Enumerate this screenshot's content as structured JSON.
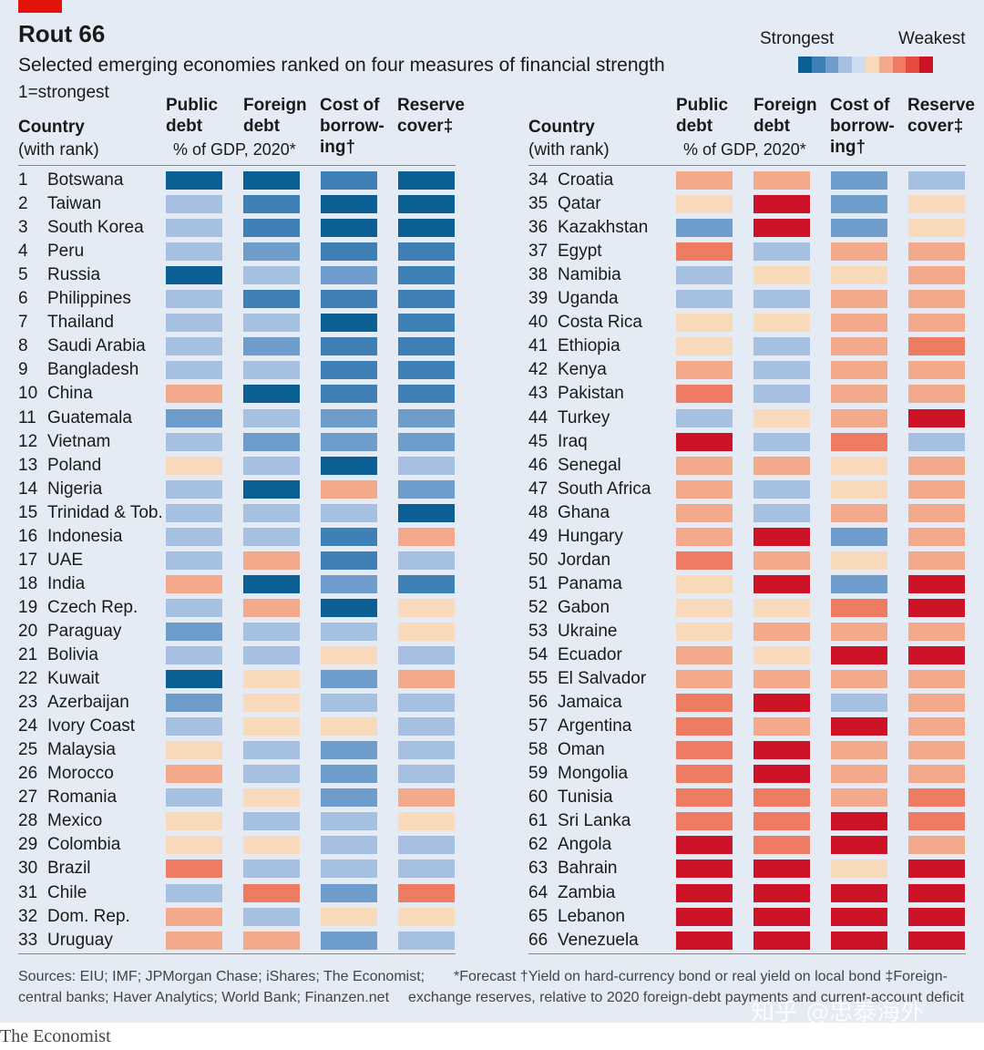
{
  "header": {
    "title": "Rout 66",
    "subtitle": "Selected emerging economies ranked on four measures of financial strength",
    "note": "1=strongest"
  },
  "legend": {
    "strongest_label": "Strongest",
    "weakest_label": "Weakest"
  },
  "column_headers": {
    "country": "Country",
    "country_sub": "(with rank)",
    "public_debt": "Public\ndebt",
    "foreign_debt": "Foreign\ndebt",
    "units": "% of GDP, 2020*",
    "cost_of_borrowing": "Cost of\nborrow-\ning†",
    "reserve_cover": "Reserve\ncover‡"
  },
  "footer": {
    "sources_line1": "Sources: EIU; IMF; JPMorgan Chase; iShares; The Economist;",
    "sources_line2": "central banks; Haver Analytics; World Bank; Finanzen.net",
    "notes_line1": "*Forecast   †Yield on hard-currency bond or real yield on local bond   ‡Foreign-",
    "notes_line2": "exchange reserves, relative to 2020 foreign-debt payments and current-account deficit"
  },
  "watermark": "知乎 @忠泰海外",
  "brand": "The Economist",
  "colors": {
    "scale": [
      "#0b5f93",
      "#3e7fb5",
      "#6e9ccb",
      "#a6c0e1",
      "#cddcee",
      "#f8d9ba",
      "#f4a98d",
      "#ee7c63",
      "#e54b3f",
      "#cc1426"
    ],
    "panel_background": "#e5ebf4",
    "brand_red": "#e3120b"
  },
  "chart_data": {
    "type": "heatmap",
    "title": "Rout 66",
    "subtitle": "Selected emerging economies ranked on four measures of financial strength",
    "note": "1=strongest",
    "scale": "1=strongest (dark blue) to 10=weakest (dark red)",
    "measures": [
      "Public debt",
      "Foreign debt",
      "Cost of borrowing",
      "Reserve cover"
    ],
    "rows": [
      {
        "rank": 1,
        "country": "Botswana",
        "scores": [
          1,
          1,
          2,
          1
        ]
      },
      {
        "rank": 2,
        "country": "Taiwan",
        "scores": [
          4,
          2,
          1,
          1
        ]
      },
      {
        "rank": 3,
        "country": "South Korea",
        "scores": [
          4,
          2,
          1,
          1
        ]
      },
      {
        "rank": 4,
        "country": "Peru",
        "scores": [
          4,
          3,
          2,
          2
        ]
      },
      {
        "rank": 5,
        "country": "Russia",
        "scores": [
          1,
          4,
          3,
          2
        ]
      },
      {
        "rank": 6,
        "country": "Philippines",
        "scores": [
          4,
          2,
          2,
          2
        ]
      },
      {
        "rank": 7,
        "country": "Thailand",
        "scores": [
          4,
          4,
          1,
          2
        ]
      },
      {
        "rank": 8,
        "country": "Saudi Arabia",
        "scores": [
          4,
          3,
          2,
          2
        ]
      },
      {
        "rank": 9,
        "country": "Bangladesh",
        "scores": [
          4,
          4,
          2,
          2
        ]
      },
      {
        "rank": 10,
        "country": "China",
        "scores": [
          7,
          1,
          2,
          2
        ]
      },
      {
        "rank": 11,
        "country": "Guatemala",
        "scores": [
          3,
          4,
          3,
          3
        ]
      },
      {
        "rank": 12,
        "country": "Vietnam",
        "scores": [
          4,
          3,
          3,
          3
        ]
      },
      {
        "rank": 13,
        "country": "Poland",
        "scores": [
          6,
          4,
          1,
          4
        ]
      },
      {
        "rank": 14,
        "country": "Nigeria",
        "scores": [
          4,
          1,
          7,
          3
        ]
      },
      {
        "rank": 15,
        "country": "Trinidad & Tob.",
        "scores": [
          4,
          4,
          4,
          1
        ]
      },
      {
        "rank": 16,
        "country": "Indonesia",
        "scores": [
          4,
          4,
          2,
          7
        ]
      },
      {
        "rank": 17,
        "country": "UAE",
        "scores": [
          4,
          7,
          2,
          4
        ]
      },
      {
        "rank": 18,
        "country": "India",
        "scores": [
          7,
          1,
          3,
          2
        ]
      },
      {
        "rank": 19,
        "country": "Czech Rep.",
        "scores": [
          4,
          7,
          1,
          6
        ]
      },
      {
        "rank": 20,
        "country": "Paraguay",
        "scores": [
          3,
          4,
          4,
          6
        ]
      },
      {
        "rank": 21,
        "country": "Bolivia",
        "scores": [
          4,
          4,
          6,
          4
        ]
      },
      {
        "rank": 22,
        "country": "Kuwait",
        "scores": [
          1,
          6,
          3,
          7
        ]
      },
      {
        "rank": 23,
        "country": "Azerbaijan",
        "scores": [
          3,
          6,
          4,
          4
        ]
      },
      {
        "rank": 24,
        "country": "Ivory Coast",
        "scores": [
          4,
          6,
          6,
          4
        ]
      },
      {
        "rank": 25,
        "country": "Malaysia",
        "scores": [
          6,
          4,
          3,
          4
        ]
      },
      {
        "rank": 26,
        "country": "Morocco",
        "scores": [
          7,
          4,
          3,
          4
        ]
      },
      {
        "rank": 27,
        "country": "Romania",
        "scores": [
          4,
          6,
          3,
          7
        ]
      },
      {
        "rank": 28,
        "country": "Mexico",
        "scores": [
          6,
          4,
          4,
          6
        ]
      },
      {
        "rank": 29,
        "country": "Colombia",
        "scores": [
          6,
          6,
          4,
          4
        ]
      },
      {
        "rank": 30,
        "country": "Brazil",
        "scores": [
          8,
          4,
          4,
          4
        ]
      },
      {
        "rank": 31,
        "country": "Chile",
        "scores": [
          4,
          8,
          3,
          8
        ]
      },
      {
        "rank": 32,
        "country": "Dom. Rep.",
        "scores": [
          7,
          4,
          6,
          6
        ]
      },
      {
        "rank": 33,
        "country": "Uruguay",
        "scores": [
          7,
          7,
          3,
          4
        ]
      },
      {
        "rank": 34,
        "country": "Croatia",
        "scores": [
          7,
          7,
          3,
          4
        ]
      },
      {
        "rank": 35,
        "country": "Qatar",
        "scores": [
          6,
          10,
          3,
          6
        ]
      },
      {
        "rank": 36,
        "country": "Kazakhstan",
        "scores": [
          3,
          10,
          3,
          6
        ]
      },
      {
        "rank": 37,
        "country": "Egypt",
        "scores": [
          8,
          4,
          7,
          7
        ]
      },
      {
        "rank": 38,
        "country": "Namibia",
        "scores": [
          4,
          6,
          6,
          7
        ]
      },
      {
        "rank": 39,
        "country": "Uganda",
        "scores": [
          4,
          4,
          7,
          7
        ]
      },
      {
        "rank": 40,
        "country": "Costa Rica",
        "scores": [
          6,
          6,
          7,
          7
        ]
      },
      {
        "rank": 41,
        "country": "Ethiopia",
        "scores": [
          6,
          4,
          7,
          8
        ]
      },
      {
        "rank": 42,
        "country": "Kenya",
        "scores": [
          7,
          4,
          7,
          7
        ]
      },
      {
        "rank": 43,
        "country": "Pakistan",
        "scores": [
          8,
          4,
          7,
          7
        ]
      },
      {
        "rank": 44,
        "country": "Turkey",
        "scores": [
          4,
          6,
          7,
          10
        ]
      },
      {
        "rank": 45,
        "country": "Iraq",
        "scores": [
          10,
          4,
          8,
          4
        ]
      },
      {
        "rank": 46,
        "country": "Senegal",
        "scores": [
          7,
          7,
          6,
          7
        ]
      },
      {
        "rank": 47,
        "country": "South Africa",
        "scores": [
          7,
          4,
          6,
          7
        ]
      },
      {
        "rank": 48,
        "country": "Ghana",
        "scores": [
          7,
          4,
          7,
          7
        ]
      },
      {
        "rank": 49,
        "country": "Hungary",
        "scores": [
          7,
          10,
          3,
          7
        ]
      },
      {
        "rank": 50,
        "country": "Jordan",
        "scores": [
          8,
          7,
          6,
          7
        ]
      },
      {
        "rank": 51,
        "country": "Panama",
        "scores": [
          6,
          10,
          3,
          10
        ]
      },
      {
        "rank": 52,
        "country": "Gabon",
        "scores": [
          6,
          6,
          8,
          10
        ]
      },
      {
        "rank": 53,
        "country": "Ukraine",
        "scores": [
          6,
          7,
          7,
          7
        ]
      },
      {
        "rank": 54,
        "country": "Ecuador",
        "scores": [
          7,
          6,
          10,
          10
        ]
      },
      {
        "rank": 55,
        "country": "El Salvador",
        "scores": [
          7,
          7,
          7,
          7
        ]
      },
      {
        "rank": 56,
        "country": "Jamaica",
        "scores": [
          8,
          10,
          4,
          7
        ]
      },
      {
        "rank": 57,
        "country": "Argentina",
        "scores": [
          8,
          7,
          10,
          7
        ]
      },
      {
        "rank": 58,
        "country": "Oman",
        "scores": [
          8,
          10,
          7,
          7
        ]
      },
      {
        "rank": 59,
        "country": "Mongolia",
        "scores": [
          8,
          10,
          7,
          7
        ]
      },
      {
        "rank": 60,
        "country": "Tunisia",
        "scores": [
          8,
          8,
          7,
          8
        ]
      },
      {
        "rank": 61,
        "country": "Sri Lanka",
        "scores": [
          8,
          8,
          10,
          8
        ]
      },
      {
        "rank": 62,
        "country": "Angola",
        "scores": [
          10,
          8,
          10,
          7
        ]
      },
      {
        "rank": 63,
        "country": "Bahrain",
        "scores": [
          10,
          10,
          6,
          10
        ]
      },
      {
        "rank": 64,
        "country": "Zambia",
        "scores": [
          10,
          10,
          10,
          10
        ]
      },
      {
        "rank": 65,
        "country": "Lebanon",
        "scores": [
          10,
          10,
          10,
          10
        ]
      },
      {
        "rank": 66,
        "country": "Venezuela",
        "scores": [
          10,
          10,
          10,
          10
        ]
      }
    ]
  }
}
